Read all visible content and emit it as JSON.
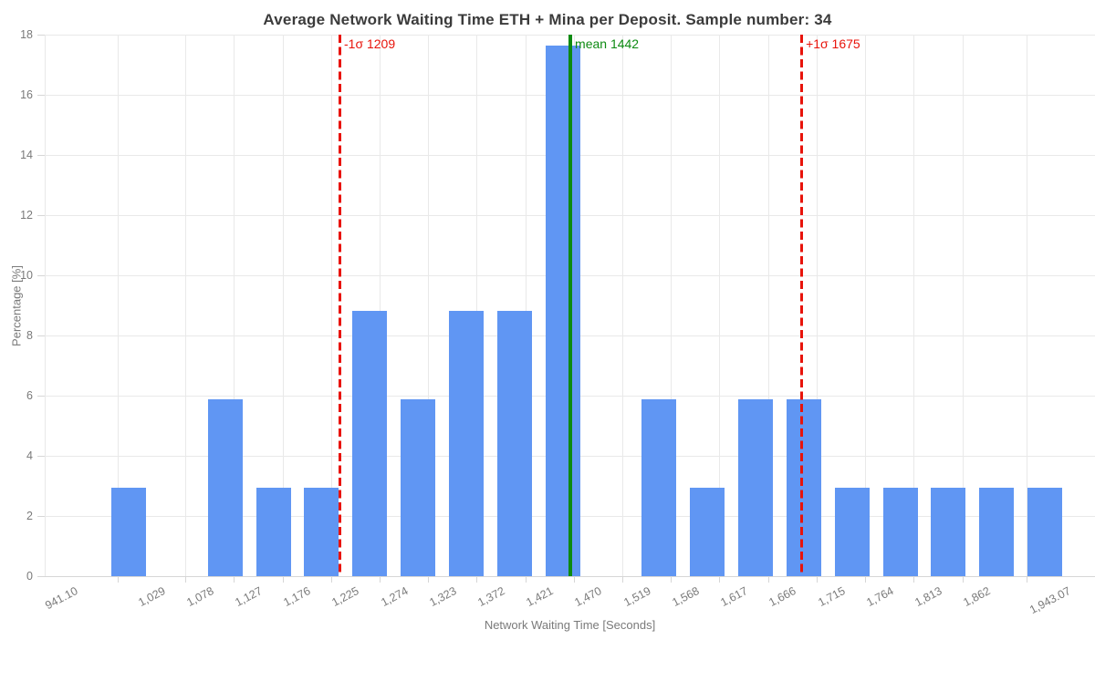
{
  "title": "Average Network Waiting Time ETH + Mina per Deposit. Sample number: 34",
  "chart_data": {
    "type": "bar",
    "subtype": "histogram",
    "title": "Average Network Waiting Time ETH + Mina per Deposit. Sample number: 34",
    "xlabel": "Network Waiting Time [Seconds]",
    "ylabel": "Percentage [%]",
    "sample_number": 34,
    "ylim": [
      0,
      18
    ],
    "y_ticks": [
      0,
      2,
      4,
      6,
      8,
      10,
      12,
      14,
      16,
      18
    ],
    "x_tick_labels": [
      "941.10",
      "1,029",
      "1,078",
      "1,127",
      "1,176",
      "1,225",
      "1,274",
      "1,323",
      "1,372",
      "1,421",
      "1,470",
      "1,519",
      "1,568",
      "1,617",
      "1,666",
      "1,715",
      "1,764",
      "1,813",
      "1,862",
      "1,943.07"
    ],
    "x_tick_values": [
      941.1,
      1029,
      1078,
      1127,
      1176,
      1225,
      1274,
      1323,
      1372,
      1421,
      1470,
      1519,
      1568,
      1617,
      1666,
      1715,
      1764,
      1813,
      1862,
      1943.07
    ],
    "values": [
      2.94,
      0,
      5.88,
      2.94,
      2.94,
      8.82,
      5.88,
      8.82,
      8.82,
      17.65,
      0,
      5.88,
      2.94,
      5.88,
      5.88,
      2.94,
      2.94,
      2.94,
      2.94,
      2.94
    ],
    "bar_color": "#6096f3",
    "grid": true,
    "legend": false,
    "reference_lines": [
      {
        "id": "minus-1-sigma",
        "label": "-1σ 1209",
        "value": 1209,
        "color": "#e8130a",
        "style": "dashed"
      },
      {
        "id": "mean",
        "label": "mean 1442",
        "value": 1442,
        "color": "#0d8a12",
        "style": "solid"
      },
      {
        "id": "plus-1-sigma",
        "label": "+1σ 1675",
        "value": 1675,
        "color": "#e8130a",
        "style": "dashed"
      }
    ]
  }
}
